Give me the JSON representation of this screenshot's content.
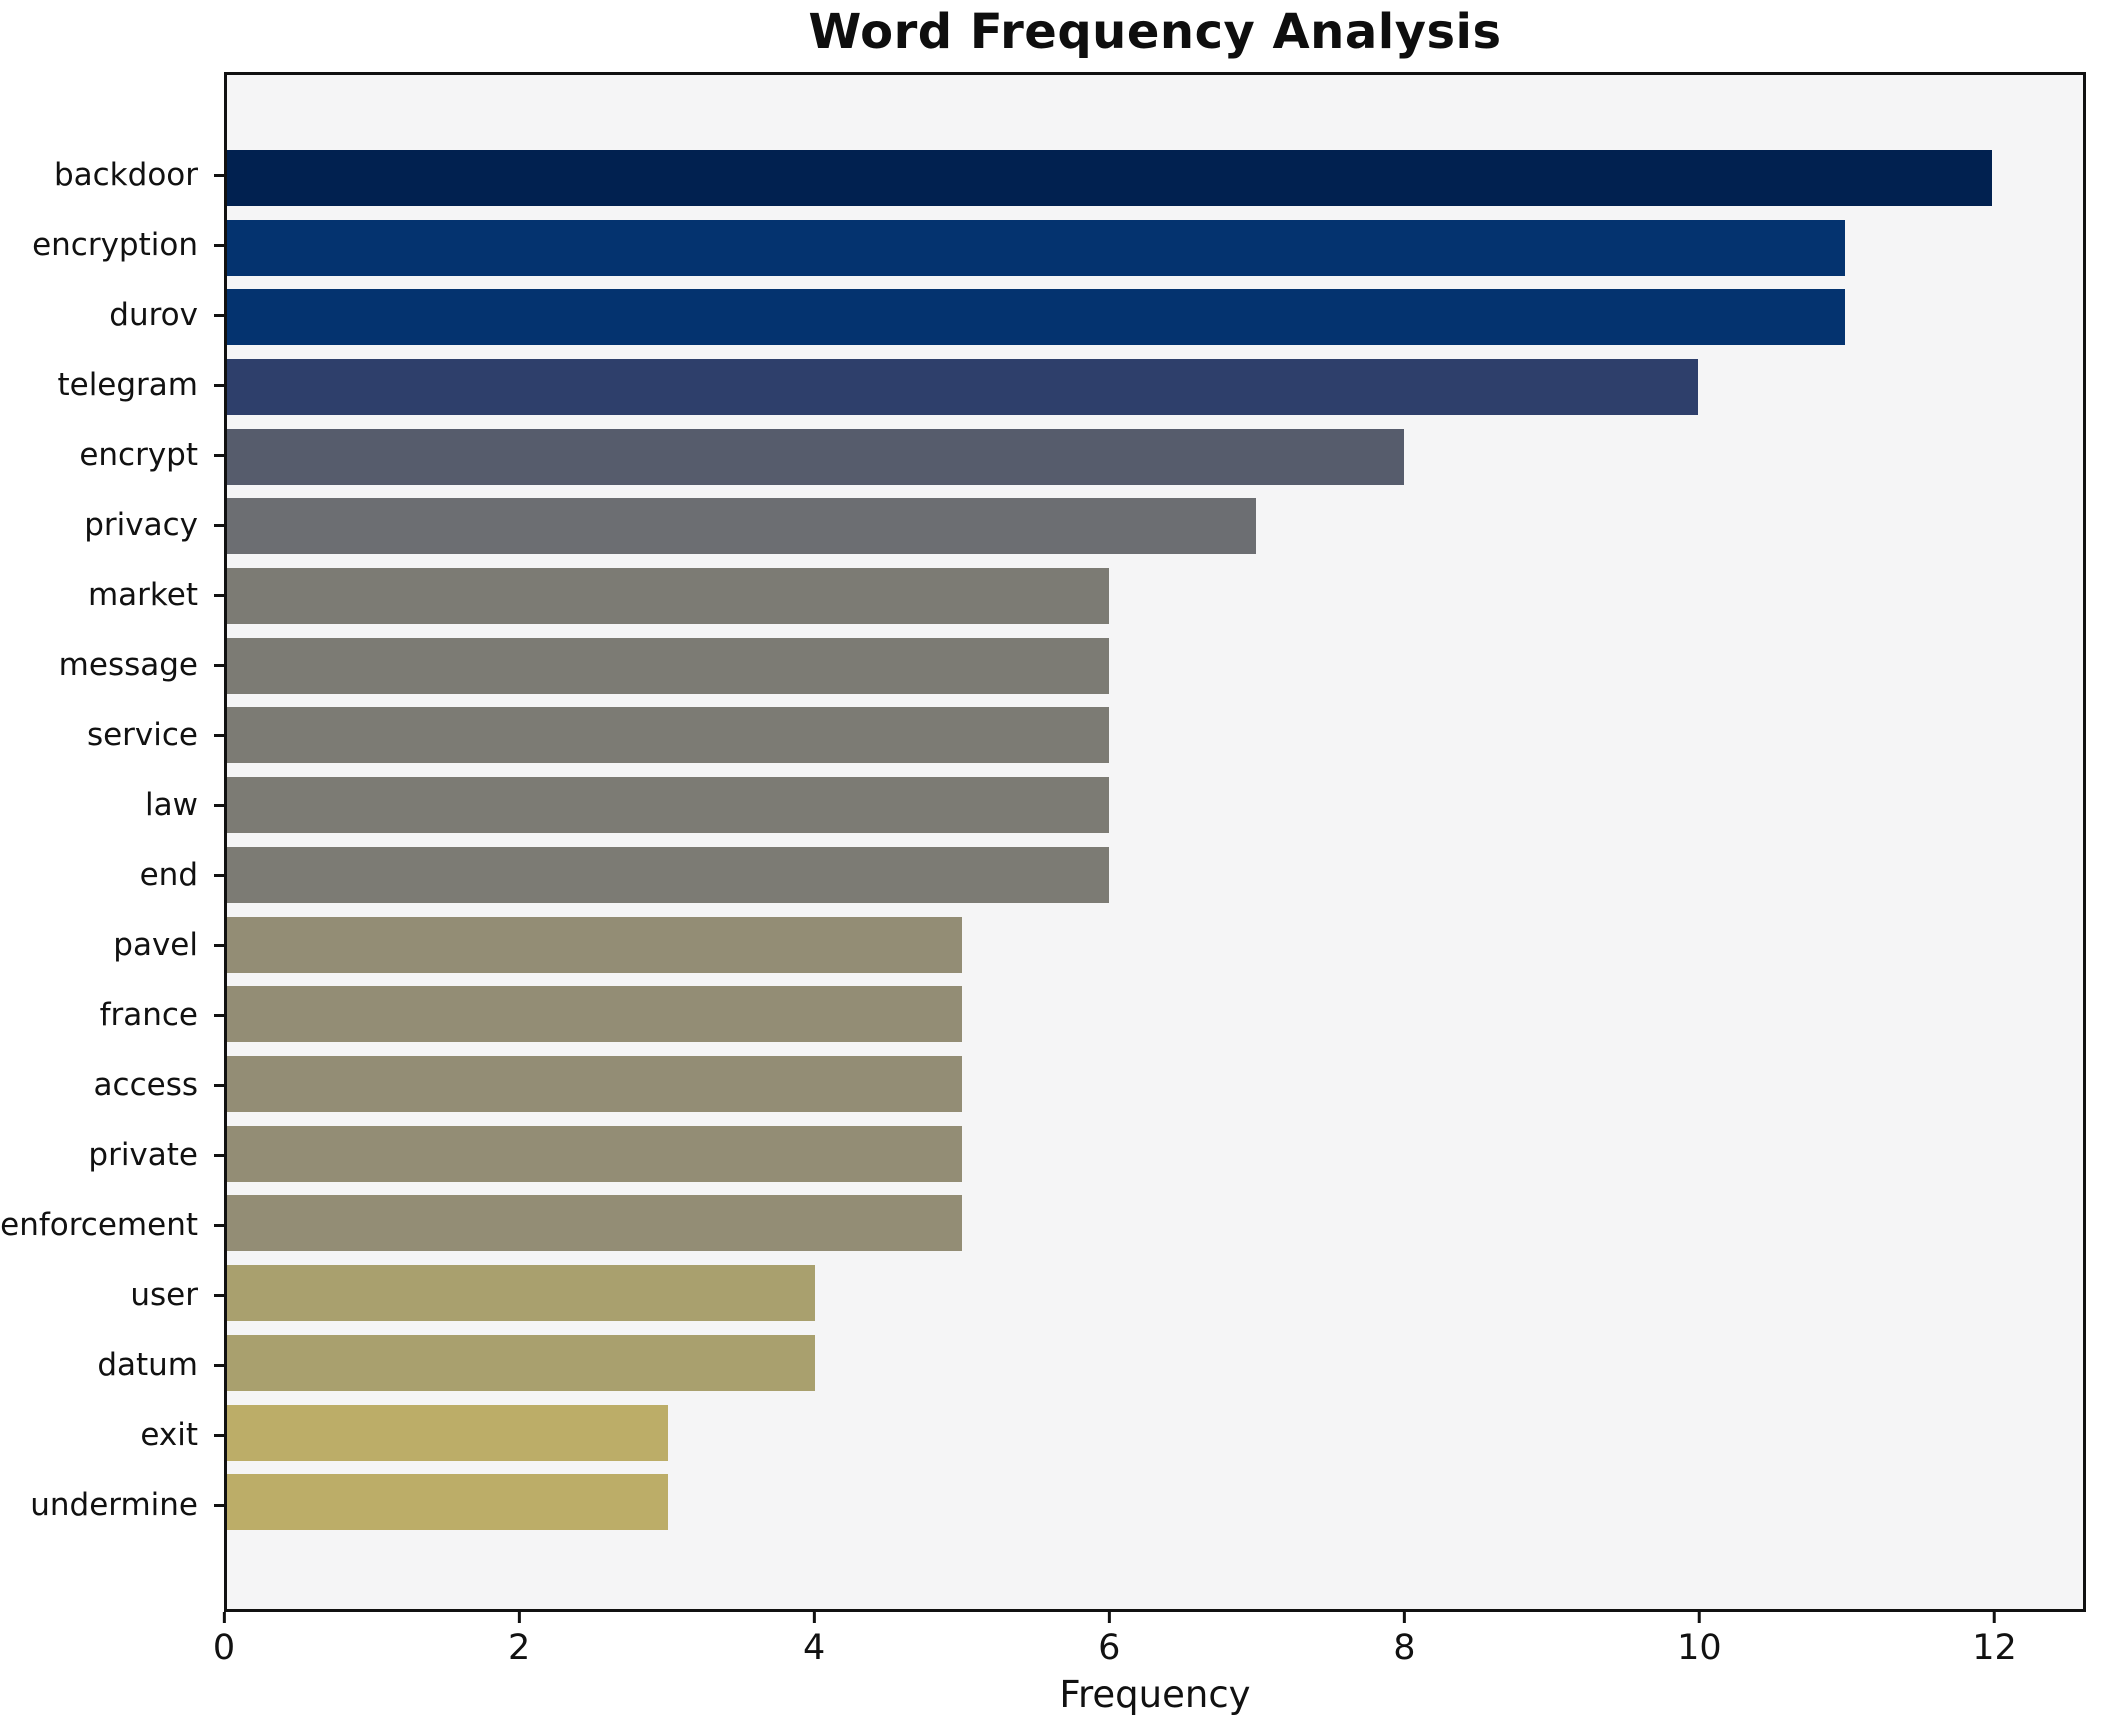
{
  "chart_data": {
    "type": "bar",
    "orientation": "horizontal",
    "title": "Word Frequency Analysis",
    "xlabel": "Frequency",
    "ylabel": "",
    "categories": [
      "backdoor",
      "encryption",
      "durov",
      "telegram",
      "encrypt",
      "privacy",
      "market",
      "message",
      "service",
      "law",
      "end",
      "pavel",
      "france",
      "access",
      "private",
      "enforcement",
      "user",
      "datum",
      "exit",
      "undermine"
    ],
    "values": [
      12,
      11,
      11,
      10,
      8,
      7,
      6,
      6,
      6,
      6,
      6,
      5,
      5,
      5,
      5,
      5,
      4,
      4,
      3,
      3
    ],
    "bar_colors": [
      "#012150",
      "#04336f",
      "#04336f",
      "#2e3f6b",
      "#565c6c",
      "#6c6e72",
      "#7c7b74",
      "#7c7b74",
      "#7c7b74",
      "#7c7b74",
      "#7c7b74",
      "#938d75",
      "#938d75",
      "#938d75",
      "#938d75",
      "#938d75",
      "#a9a06e",
      "#a9a06e",
      "#bcad68",
      "#bcad68"
    ],
    "colormap": "cividis",
    "xlim": [
      0,
      12.62
    ],
    "xticks": [
      0,
      2,
      4,
      6,
      8,
      10,
      12
    ],
    "grid": false,
    "legend": null,
    "plot_background": "#f5f5f6",
    "figure_background": "#ffffff",
    "spine_color": "#111111"
  }
}
